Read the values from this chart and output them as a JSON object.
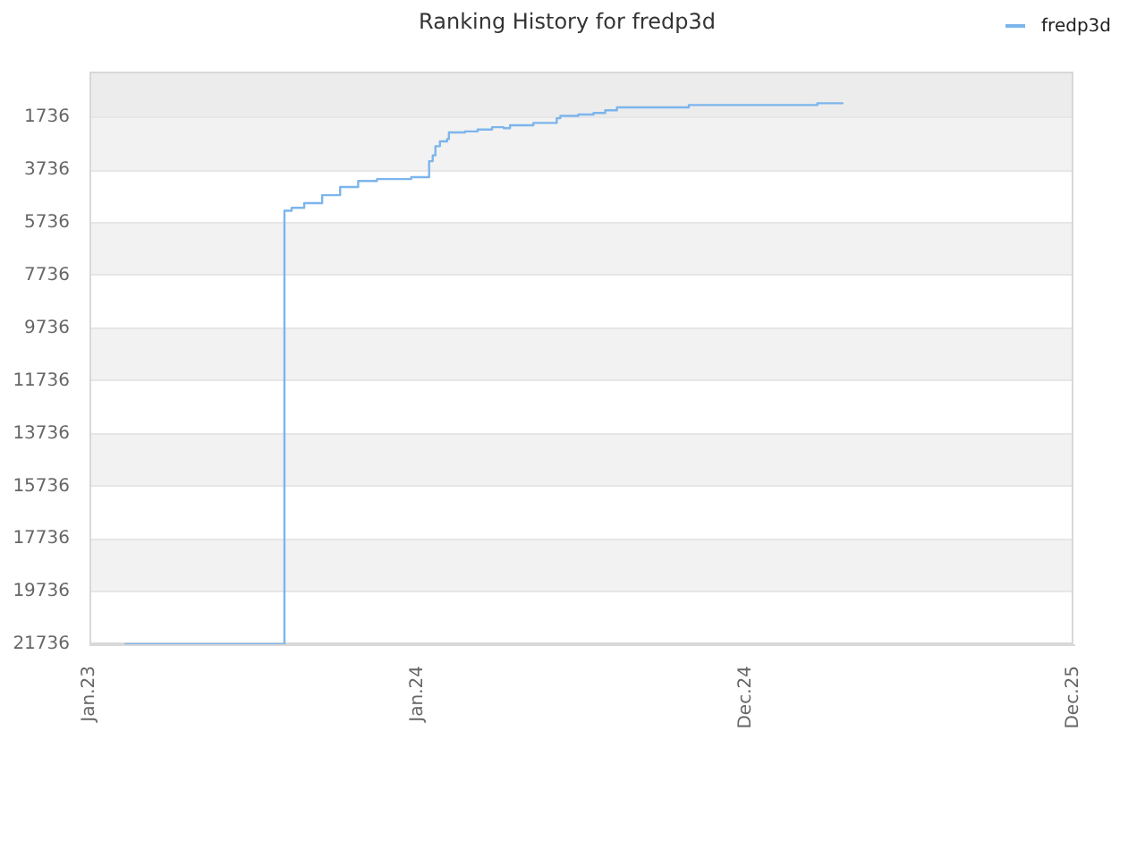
{
  "chart_data": {
    "type": "step",
    "title": "Ranking History for fredp3d",
    "x": [
      "2023-02-10",
      "2023-08-06",
      "2023-08-14",
      "2023-08-28",
      "2023-09-17",
      "2023-10-07",
      "2023-10-27",
      "2023-11-17",
      "2023-12-25",
      "2024-01-14",
      "2024-01-18",
      "2024-01-21",
      "2024-01-26",
      "2024-02-03",
      "2024-02-05",
      "2024-02-23",
      "2024-03-08",
      "2024-03-24",
      "2024-04-06",
      "2024-04-13",
      "2024-05-09",
      "2024-06-04",
      "2024-06-08",
      "2024-06-28",
      "2024-07-15",
      "2024-07-28",
      "2024-08-10",
      "2024-10-29",
      "2025-03-21",
      "2025-04-18"
    ],
    "series": [
      {
        "name": "fredp3d",
        "color": "#7cb5ec",
        "values": [
          21736,
          5280,
          5170,
          4990,
          4690,
          4380,
          4150,
          4080,
          4010,
          3400,
          3180,
          2830,
          2650,
          2560,
          2310,
          2270,
          2200,
          2110,
          2150,
          2040,
          1950,
          1770,
          1680,
          1630,
          1570,
          1470,
          1360,
          1270,
          1200,
          1200
        ]
      }
    ],
    "xlim": [
      "2023-01-01",
      "2025-12-31"
    ],
    "xticks": [
      {
        "value": "2023-01-01",
        "label": "Jan.23"
      },
      {
        "value": "2024-01-01",
        "label": "Jan.24"
      },
      {
        "value": "2024-12-31",
        "label": "Dec.24"
      },
      {
        "value": "2025-12-31",
        "label": "Dec.25"
      }
    ],
    "ylim": [
      21736,
      0
    ],
    "yticks": [
      1736,
      3736,
      5736,
      7736,
      9736,
      11736,
      13736,
      15736,
      17736,
      19736,
      21736
    ],
    "bands": [
      {
        "axis": "y",
        "from": 0,
        "to": 1736,
        "color": "#ececec"
      }
    ],
    "grid": "y",
    "legend": "top right"
  }
}
